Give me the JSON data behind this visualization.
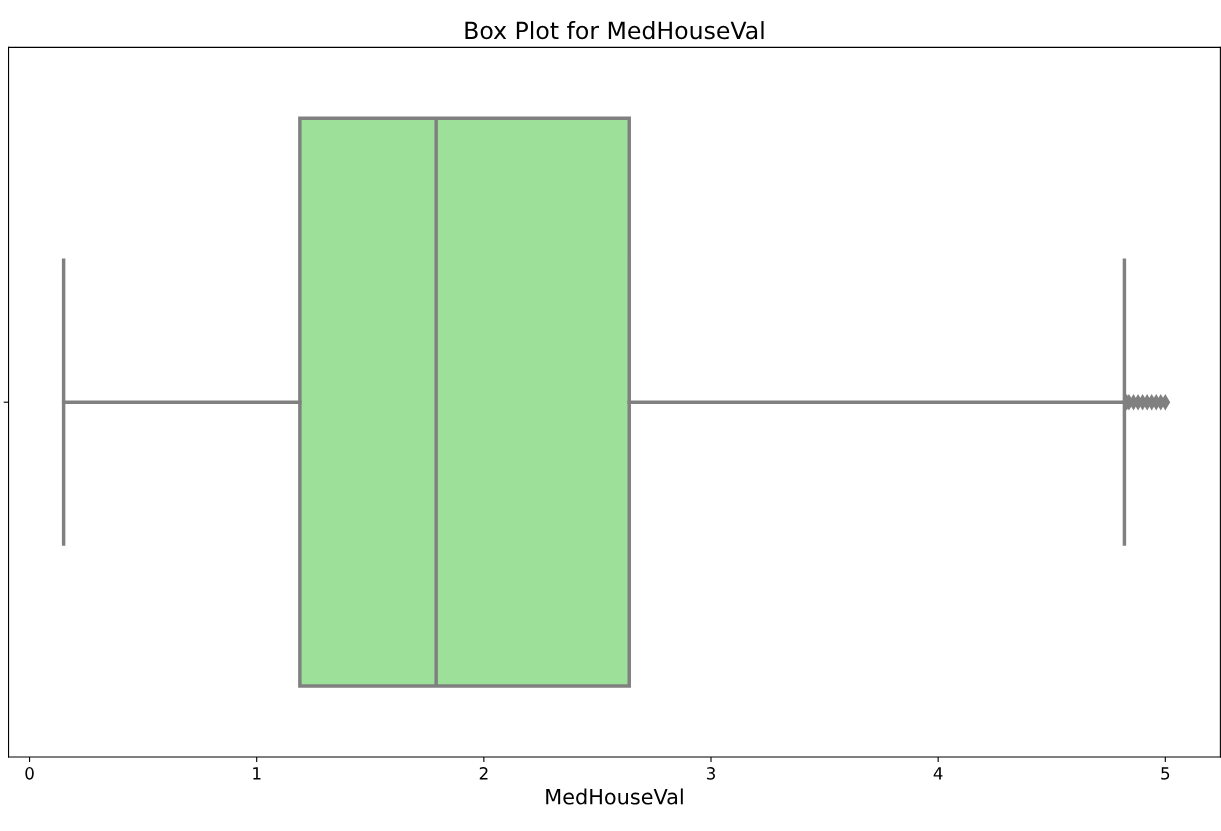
{
  "chart_data": {
    "type": "box",
    "title": "Box Plot for MedHouseVal",
    "xlabel": "MedHouseVal",
    "orientation": "horizontal",
    "categories": [
      null
    ],
    "color": "#9ce09a",
    "boxes": [
      {
        "low": 0.15,
        "q1": 1.19,
        "median": 1.79,
        "q3": 2.64,
        "high": 4.82,
        "outliers": [
          4.83,
          4.84,
          4.86,
          4.88,
          4.9,
          4.92,
          4.94,
          4.96,
          4.98,
          5.0
        ]
      }
    ],
    "xlim": [
      -0.0925,
      5.2425
    ],
    "xticks": [
      0,
      1,
      2,
      3,
      4,
      5
    ],
    "grid": false
  }
}
